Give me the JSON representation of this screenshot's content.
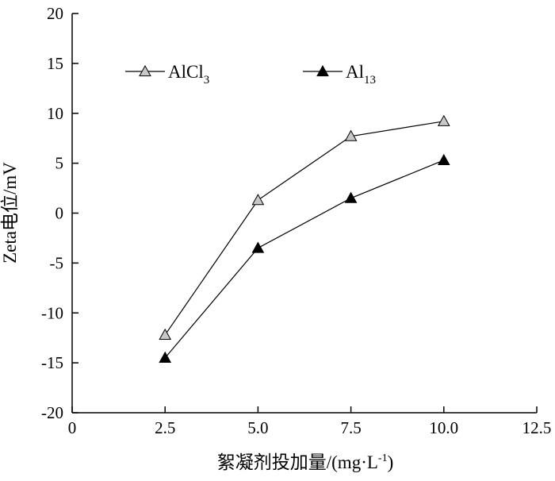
{
  "chart_data": {
    "type": "line",
    "title": "",
    "xlabel": "絮凝剂投加量/(mg·L",
    "xlabel_sup": "-1",
    "xlabel_end": ")",
    "ylabel": "Zeta电位/mV",
    "xlim": [
      0,
      12.5
    ],
    "ylim": [
      -20,
      20
    ],
    "x_ticks": [
      0,
      2.5,
      5.0,
      7.5,
      10.0,
      12.5
    ],
    "x_tick_labels": [
      "0",
      "2.5",
      "5.0",
      "7.5",
      "10.0",
      "12.5"
    ],
    "y_ticks": [
      -20,
      -15,
      -10,
      -5,
      0,
      5,
      10,
      15,
      20
    ],
    "y_tick_labels": [
      "-20",
      "-15",
      "-10",
      "-5",
      "0",
      "5",
      "10",
      "15",
      "20"
    ],
    "grid": false,
    "legend_position": "top-left",
    "series": [
      {
        "name": "AlCl",
        "name_sub": "3",
        "marker": "open-triangle",
        "color": "#000000",
        "fill": "#c8c8c8",
        "x": [
          2.5,
          5.0,
          7.5,
          10.0
        ],
        "y": [
          -12.2,
          1.3,
          7.7,
          9.2
        ]
      },
      {
        "name": "Al",
        "name_sub": "13",
        "marker": "filled-triangle",
        "color": "#000000",
        "fill": "#000000",
        "x": [
          2.5,
          5.0,
          7.5,
          10.0
        ],
        "y": [
          -14.5,
          -3.5,
          1.5,
          5.3
        ]
      }
    ]
  }
}
